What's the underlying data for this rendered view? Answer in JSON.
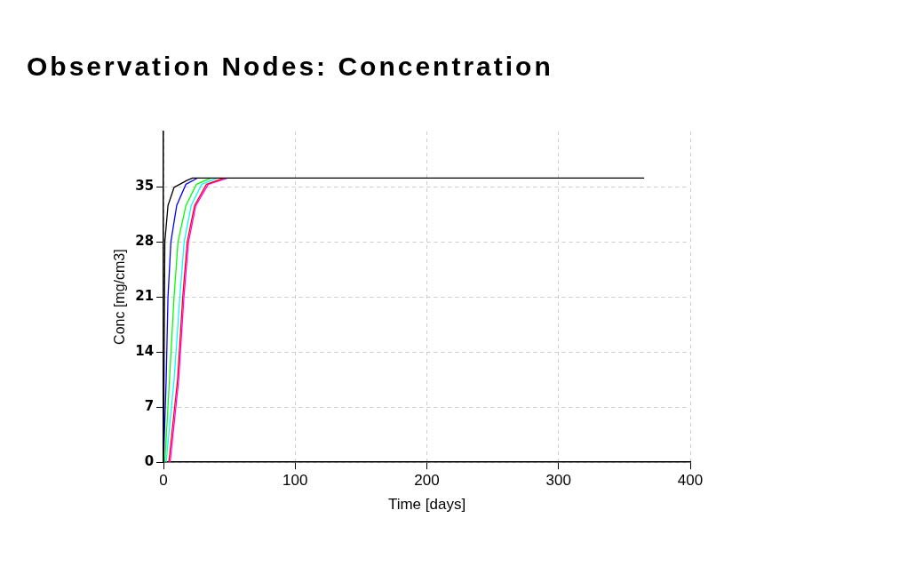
{
  "chart_data": {
    "type": "line",
    "title": "Observation Nodes: Concentration",
    "xlabel": "Time [days]",
    "ylabel": "Conc [mg/cm3]",
    "xlim": [
      0,
      400
    ],
    "xticks": [
      0,
      100,
      200,
      300,
      400
    ],
    "ylim": [
      0,
      42
    ],
    "yticks": [
      0,
      7,
      14,
      21,
      28,
      35
    ],
    "grid": true,
    "legend": false,
    "marker": "none",
    "line_style": "solid",
    "series": [
      {
        "color": "#000000",
        "x": [
          0,
          1,
          3.4,
          8,
          18,
          22,
          365
        ],
        "values": [
          0,
          28,
          32.6,
          34.9,
          35.8,
          36.1,
          36.1
        ]
      },
      {
        "color": "#0000ff",
        "x": [
          0,
          2,
          3.4,
          5.6,
          10,
          17,
          26
        ],
        "values": [
          0,
          10.4,
          21,
          28,
          32.6,
          35.3,
          36.1
        ]
      },
      {
        "color": "#00ff00",
        "x": [
          1,
          4.5,
          8,
          11,
          17,
          25,
          36
        ],
        "values": [
          0,
          10.4,
          21,
          28,
          32.6,
          35.3,
          36.1
        ]
      },
      {
        "color": "#00ffff",
        "x": [
          2,
          8,
          12.4,
          15.7,
          21,
          29,
          41
        ],
        "values": [
          0,
          10.4,
          21,
          28,
          32.6,
          35.3,
          36.1
        ]
      },
      {
        "color": "#ff0000",
        "x": [
          4,
          10.6,
          14.6,
          18,
          23.6,
          32.6,
          46
        ],
        "values": [
          0,
          10.4,
          21,
          28,
          32.6,
          35.3,
          36.1
        ]
      },
      {
        "color": "#ff00ff",
        "x": [
          5,
          11.5,
          15.5,
          19,
          24.5,
          34,
          49
        ],
        "values": [
          0,
          10.4,
          21,
          28,
          32.6,
          35.3,
          36.1
        ]
      }
    ]
  }
}
